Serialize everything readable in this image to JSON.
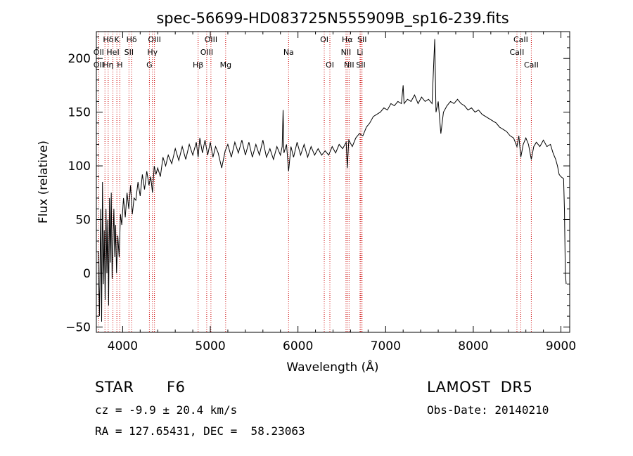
{
  "chart_data": {
    "type": "line",
    "title": "spec-56699-HD083725N555909B_sp16-239.fits",
    "xlabel": "Wavelength (Å)",
    "ylabel": "Flux (relative)",
    "xlim": [
      3700,
      9100
    ],
    "ylim": [
      -55,
      225
    ],
    "xticks": [
      4000,
      5000,
      6000,
      7000,
      8000,
      9000
    ],
    "yticks": [
      -50,
      0,
      50,
      100,
      150,
      200
    ],
    "grid": false,
    "series": [
      {
        "values": [
          [
            3720,
            20
          ],
          [
            3735,
            -40
          ],
          [
            3750,
            60
          ],
          [
            3760,
            -45
          ],
          [
            3770,
            85
          ],
          [
            3780,
            -10
          ],
          [
            3790,
            40
          ],
          [
            3800,
            -25
          ],
          [
            3810,
            60
          ],
          [
            3820,
            0
          ],
          [
            3830,
            50
          ],
          [
            3840,
            -30
          ],
          [
            3850,
            70
          ],
          [
            3860,
            10
          ],
          [
            3870,
            75
          ],
          [
            3880,
            -5
          ],
          [
            3890,
            30
          ],
          [
            3900,
            60
          ],
          [
            3910,
            15
          ],
          [
            3920,
            45
          ],
          [
            3930,
            0
          ],
          [
            3945,
            35
          ],
          [
            3960,
            15
          ],
          [
            3975,
            55
          ],
          [
            3990,
            45
          ],
          [
            4010,
            70
          ],
          [
            4030,
            52
          ],
          [
            4050,
            75
          ],
          [
            4070,
            60
          ],
          [
            4090,
            82
          ],
          [
            4110,
            55
          ],
          [
            4130,
            70
          ],
          [
            4150,
            68
          ],
          [
            4175,
            85
          ],
          [
            4200,
            72
          ],
          [
            4225,
            92
          ],
          [
            4250,
            78
          ],
          [
            4275,
            95
          ],
          [
            4300,
            82
          ],
          [
            4320,
            90
          ],
          [
            4340,
            75
          ],
          [
            4360,
            100
          ],
          [
            4380,
            92
          ],
          [
            4400,
            98
          ],
          [
            4430,
            90
          ],
          [
            4460,
            108
          ],
          [
            4490,
            100
          ],
          [
            4520,
            110
          ],
          [
            4560,
            102
          ],
          [
            4600,
            116
          ],
          [
            4640,
            105
          ],
          [
            4680,
            118
          ],
          [
            4720,
            106
          ],
          [
            4760,
            120
          ],
          [
            4800,
            110
          ],
          [
            4840,
            122
          ],
          [
            4861,
            108
          ],
          [
            4880,
            126
          ],
          [
            4910,
            112
          ],
          [
            4940,
            124
          ],
          [
            4970,
            110
          ],
          [
            5000,
            122
          ],
          [
            5030,
            108
          ],
          [
            5060,
            118
          ],
          [
            5090,
            112
          ],
          [
            5130,
            98
          ],
          [
            5170,
            114
          ],
          [
            5200,
            120
          ],
          [
            5240,
            108
          ],
          [
            5280,
            122
          ],
          [
            5320,
            112
          ],
          [
            5360,
            124
          ],
          [
            5400,
            110
          ],
          [
            5440,
            122
          ],
          [
            5480,
            108
          ],
          [
            5520,
            120
          ],
          [
            5560,
            110
          ],
          [
            5600,
            124
          ],
          [
            5640,
            108
          ],
          [
            5680,
            116
          ],
          [
            5720,
            106
          ],
          [
            5760,
            118
          ],
          [
            5800,
            110
          ],
          [
            5820,
            118
          ],
          [
            5830,
            152
          ],
          [
            5840,
            112
          ],
          [
            5870,
            120
          ],
          [
            5893,
            95
          ],
          [
            5920,
            118
          ],
          [
            5950,
            108
          ],
          [
            5990,
            122
          ],
          [
            6030,
            110
          ],
          [
            6070,
            120
          ],
          [
            6110,
            108
          ],
          [
            6150,
            118
          ],
          [
            6190,
            110
          ],
          [
            6230,
            116
          ],
          [
            6270,
            110
          ],
          [
            6310,
            114
          ],
          [
            6350,
            110
          ],
          [
            6390,
            118
          ],
          [
            6430,
            112
          ],
          [
            6470,
            120
          ],
          [
            6510,
            116
          ],
          [
            6550,
            122
          ],
          [
            6563,
            98
          ],
          [
            6580,
            124
          ],
          [
            6620,
            118
          ],
          [
            6660,
            126
          ],
          [
            6700,
            130
          ],
          [
            6740,
            128
          ],
          [
            6780,
            136
          ],
          [
            6820,
            140
          ],
          [
            6860,
            146
          ],
          [
            6900,
            148
          ],
          [
            6940,
            150
          ],
          [
            6980,
            154
          ],
          [
            7020,
            152
          ],
          [
            7060,
            158
          ],
          [
            7100,
            156
          ],
          [
            7140,
            160
          ],
          [
            7180,
            158
          ],
          [
            7200,
            175
          ],
          [
            7210,
            158
          ],
          [
            7250,
            162
          ],
          [
            7290,
            160
          ],
          [
            7330,
            166
          ],
          [
            7370,
            158
          ],
          [
            7410,
            164
          ],
          [
            7450,
            160
          ],
          [
            7490,
            162
          ],
          [
            7530,
            158
          ],
          [
            7560,
            218
          ],
          [
            7575,
            150
          ],
          [
            7600,
            160
          ],
          [
            7630,
            130
          ],
          [
            7660,
            150
          ],
          [
            7700,
            156
          ],
          [
            7740,
            160
          ],
          [
            7780,
            158
          ],
          [
            7820,
            162
          ],
          [
            7860,
            158
          ],
          [
            7900,
            156
          ],
          [
            7940,
            152
          ],
          [
            7980,
            154
          ],
          [
            8020,
            150
          ],
          [
            8060,
            152
          ],
          [
            8100,
            148
          ],
          [
            8140,
            146
          ],
          [
            8180,
            144
          ],
          [
            8220,
            142
          ],
          [
            8260,
            140
          ],
          [
            8300,
            136
          ],
          [
            8340,
            134
          ],
          [
            8380,
            132
          ],
          [
            8420,
            128
          ],
          [
            8460,
            126
          ],
          [
            8498,
            118
          ],
          [
            8520,
            128
          ],
          [
            8542,
            108
          ],
          [
            8570,
            120
          ],
          [
            8600,
            126
          ],
          [
            8630,
            120
          ],
          [
            8662,
            106
          ],
          [
            8690,
            118
          ],
          [
            8720,
            122
          ],
          [
            8760,
            118
          ],
          [
            8800,
            124
          ],
          [
            8840,
            118
          ],
          [
            8880,
            120
          ],
          [
            8910,
            112
          ],
          [
            8940,
            106
          ],
          [
            8960,
            100
          ],
          [
            8980,
            92
          ],
          [
            9000,
            90
          ],
          [
            9030,
            88
          ],
          [
            9040,
            60
          ],
          [
            9050,
            0
          ],
          [
            9060,
            -10
          ]
        ]
      }
    ],
    "line_labels": [
      {
        "text": "Hδ",
        "x": 3835,
        "row": 0
      },
      {
        "text": "K",
        "x": 3934,
        "row": 0
      },
      {
        "text": "Hδ",
        "x": 4102,
        "row": 0
      },
      {
        "text": "OIII",
        "x": 4363,
        "row": 0
      },
      {
        "text": "OIII",
        "x": 5007,
        "row": 0
      },
      {
        "text": "OI",
        "x": 6300,
        "row": 0
      },
      {
        "text": "Hα",
        "x": 6563,
        "row": 0
      },
      {
        "text": "SII",
        "x": 6731,
        "row": 0
      },
      {
        "text": "CaII",
        "x": 8542,
        "row": 0
      },
      {
        "text": "OII",
        "x": 3727,
        "row": 1
      },
      {
        "text": "HeI",
        "x": 3889,
        "row": 1
      },
      {
        "text": "SII",
        "x": 4072,
        "row": 1
      },
      {
        "text": "Hγ",
        "x": 4340,
        "row": 1
      },
      {
        "text": "OIII",
        "x": 4959,
        "row": 1
      },
      {
        "text": "Na",
        "x": 5893,
        "row": 1
      },
      {
        "text": "NII",
        "x": 6548,
        "row": 1
      },
      {
        "text": "Li",
        "x": 6708,
        "row": 1
      },
      {
        "text": "CaII",
        "x": 8498,
        "row": 1
      },
      {
        "text": "OII",
        "x": 3727,
        "row": 2
      },
      {
        "text": "Hη",
        "x": 3835,
        "row": 2
      },
      {
        "text": "H",
        "x": 3968,
        "row": 2
      },
      {
        "text": "G",
        "x": 4305,
        "row": 2
      },
      {
        "text": "Hβ",
        "x": 4861,
        "row": 2
      },
      {
        "text": "Mg",
        "x": 5175,
        "row": 2
      },
      {
        "text": "OI",
        "x": 6364,
        "row": 2
      },
      {
        "text": "NII",
        "x": 6583,
        "row": 2
      },
      {
        "text": "SII",
        "x": 6717,
        "row": 2
      },
      {
        "text": "CaII",
        "x": 8662,
        "row": 2
      }
    ],
    "line_markers": [
      3727,
      3798,
      3835,
      3889,
      3934,
      3968,
      4072,
      4102,
      4305,
      4340,
      4363,
      4861,
      4959,
      5007,
      5175,
      5893,
      6300,
      6364,
      6548,
      6563,
      6583,
      6708,
      6717,
      6731,
      8498,
      8542,
      8662
    ],
    "marker_color": "#cc0000"
  },
  "info": {
    "class_label": "STAR",
    "subclass": "F6",
    "survey": "LAMOST  DR5",
    "cz": "cz = -9.9 ± 20.4 km/s",
    "obs_date": "Obs-Date: 20140210",
    "coords": "RA = 127.65431, DEC =  58.23063"
  }
}
